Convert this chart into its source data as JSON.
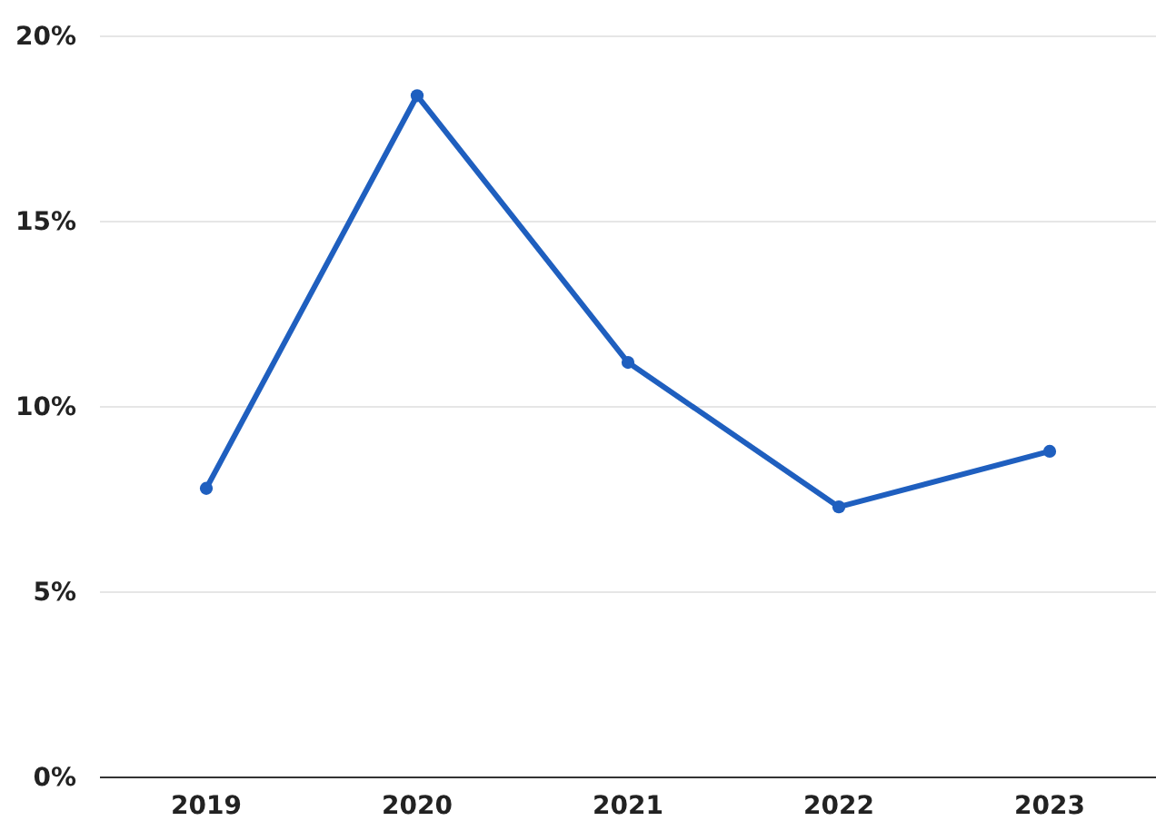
{
  "chart_data": {
    "type": "line",
    "categories": [
      "2019",
      "2020",
      "2021",
      "2022",
      "2023"
    ],
    "series": [
      {
        "color": "#1f5fbf",
        "values": [
          7.8,
          18.4,
          11.2,
          7.3,
          8.8
        ]
      }
    ],
    "ylim": [
      0,
      20
    ],
    "yticks": [
      {
        "value": 0,
        "label": "0%"
      },
      {
        "value": 5,
        "label": "5%"
      },
      {
        "value": 10,
        "label": "10%"
      },
      {
        "value": 15,
        "label": "15%"
      },
      {
        "value": 20,
        "label": "20%"
      }
    ],
    "grid": "y",
    "marker": "circle",
    "line_style": "solid"
  }
}
